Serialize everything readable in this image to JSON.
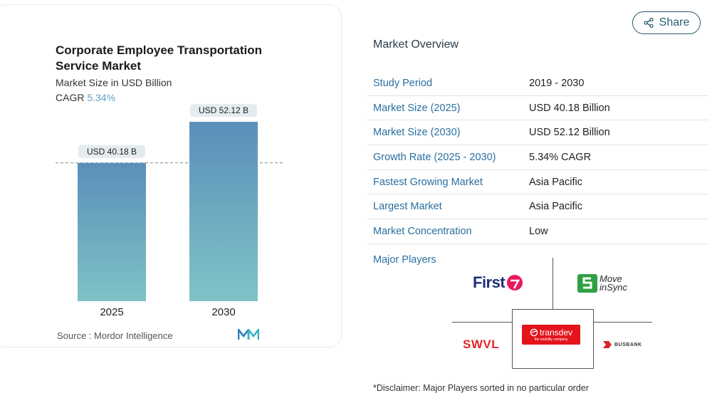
{
  "chart_data": {
    "type": "bar",
    "title": "Corporate Employee Transportation Service Market",
    "subtitle": "Market Size in USD Billion",
    "cagr_label": "CAGR",
    "cagr_value": "5.34%",
    "categories": [
      "2025",
      "2030"
    ],
    "values": [
      40.18,
      52.12
    ],
    "data_labels": [
      "USD 40.18 B",
      "USD 52.12 B"
    ],
    "ylim": [
      0,
      60
    ],
    "grid": false,
    "colors": {
      "bar_top": "#5b8fb9",
      "bar_bottom": "#7fc3c7",
      "cagr": "#5fa1c2"
    }
  },
  "chart_source": {
    "label": "Source :",
    "value": "Mordor Intelligence"
  },
  "share": {
    "label": "Share"
  },
  "overview": {
    "title": "Market Overview",
    "rows": [
      {
        "key": "Study Period",
        "value": "2019 - 2030"
      },
      {
        "key": "Market Size (2025)",
        "value": "USD 40.18 Billion"
      },
      {
        "key": "Market Size (2030)",
        "value": "USD 52.12 Billion"
      },
      {
        "key": "Growth Rate (2025 - 2030)",
        "value": "5.34% CAGR"
      },
      {
        "key": "Fastest Growing Market",
        "value": "Asia Pacific"
      },
      {
        "key": "Largest Market",
        "value": "Asia Pacific"
      },
      {
        "key": "Market Concentration",
        "value": "Low"
      }
    ]
  },
  "major_players": {
    "title": "Major Players",
    "logos": {
      "first": "First",
      "moveinsync_1": "Move",
      "moveinsync_2": "inSync",
      "swvl": "SWVL",
      "transdev": "transdev",
      "transdev_tag": "the mobility company",
      "busbank": "BUSBANK"
    }
  },
  "disclaimer": "*Disclaimer: Major Players sorted in no particular order"
}
